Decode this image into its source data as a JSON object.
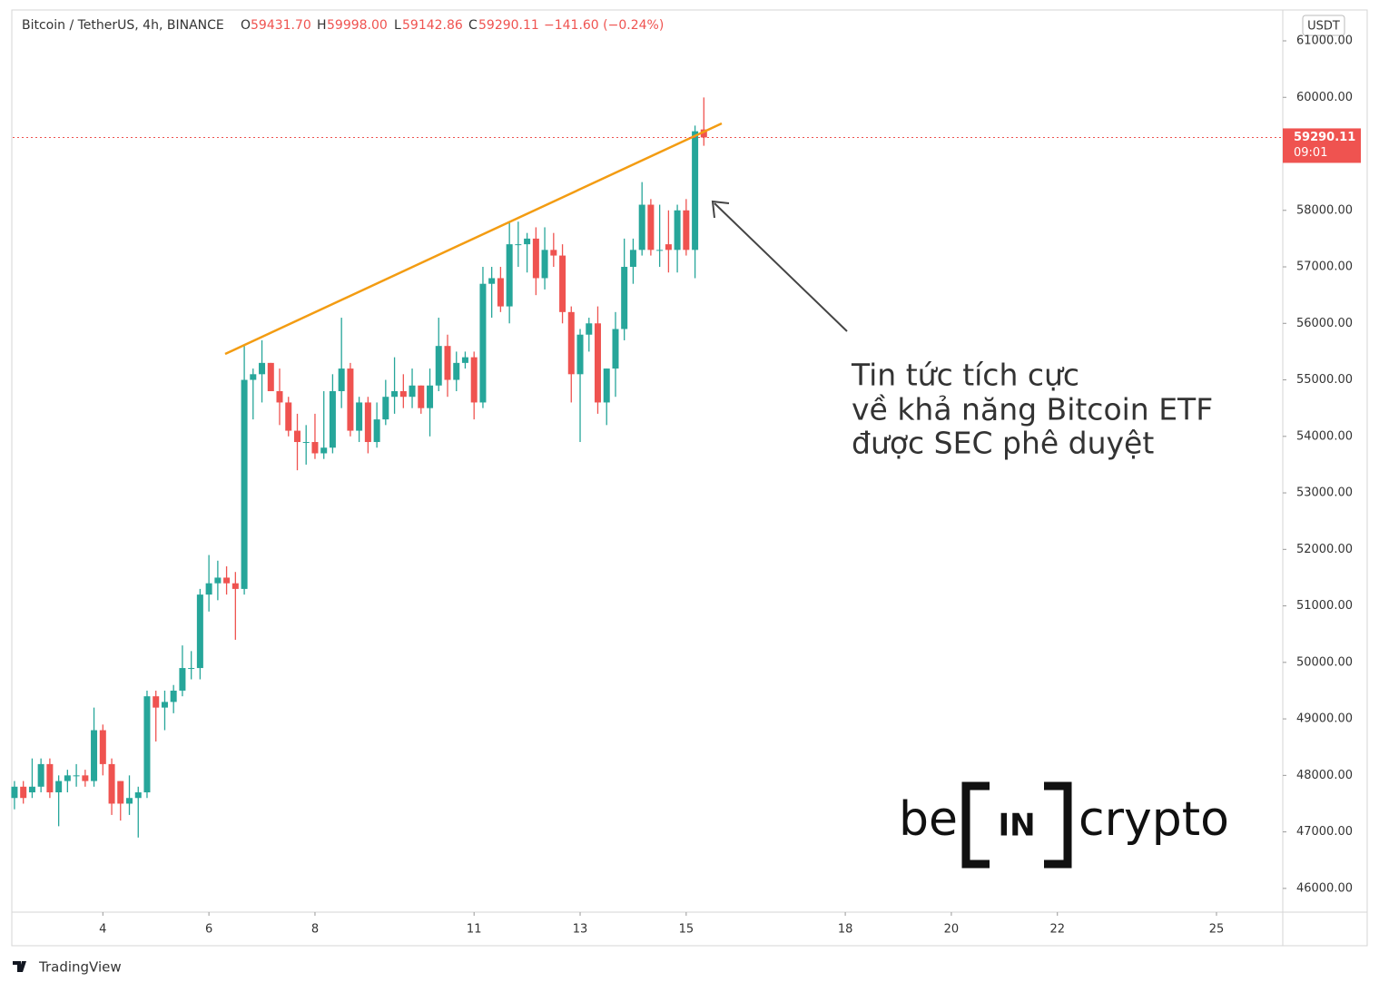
{
  "header": {
    "symbol": "Bitcoin / TetherUS, 4h, BINANCE",
    "o_label": "O",
    "o_value": "59431.70",
    "h_label": "H",
    "h_value": "59998.00",
    "l_label": "L",
    "l_value": "59142.86",
    "c_label": "C",
    "c_value": "59290.11",
    "change": "−141.60 (−0.24%)",
    "currency": "USDT",
    "countdown": "09:01"
  },
  "annotation": {
    "lines": [
      "Tin tức tích cực",
      "về khả năng Bitcoin ETF",
      "được SEC phê duyệt"
    ]
  },
  "logo": {
    "left": "be",
    "middle": "IN",
    "right": "crypto"
  },
  "footer": {
    "brand": "TradingView"
  },
  "chart_data": {
    "type": "candlestick",
    "up_color": "#26a69a",
    "down_color": "#ef5350",
    "x": [
      2.333,
      2.5,
      2.667,
      2.833,
      3,
      3.167,
      3.333,
      3.5,
      3.667,
      3.833,
      4,
      4.167,
      4.333,
      4.5,
      4.667,
      4.833,
      5,
      5.167,
      5.333,
      5.5,
      5.667,
      5.833,
      6,
      6.167,
      6.333,
      6.5,
      6.667,
      6.833,
      7,
      7.167,
      7.333,
      7.5,
      7.667,
      7.833,
      8,
      8.167,
      8.333,
      8.5,
      8.667,
      8.833,
      9,
      9.167,
      9.333,
      9.5,
      9.667,
      9.833,
      10,
      10.167,
      10.333,
      10.5,
      10.667,
      10.833,
      11,
      11.167,
      11.333,
      11.5,
      11.667,
      11.833,
      12,
      12.167,
      12.333,
      12.5,
      12.667,
      12.833,
      13,
      13.167,
      13.333,
      13.5,
      13.667,
      13.833,
      14,
      14.167,
      14.333,
      14.5,
      14.667,
      14.833,
      15,
      15.167,
      15.333
    ],
    "open": [
      47600,
      47800,
      47700,
      47800,
      48200,
      47700,
      47900,
      48000,
      48000,
      47900,
      48800,
      48200,
      47900,
      47500,
      47600,
      47700,
      49400,
      49200,
      49300,
      49500,
      49900,
      49900,
      51200,
      51400,
      51500,
      51400,
      51300,
      55000,
      55100,
      55300,
      54800,
      54600,
      54100,
      53900,
      53900,
      53700,
      53800,
      54800,
      55200,
      54100,
      54600,
      53900,
      54300,
      54700,
      54800,
      54700,
      54900,
      54500,
      54900,
      55600,
      55000,
      55300,
      55400,
      54600,
      56700,
      56800,
      56300,
      57400,
      57400,
      57500,
      56800,
      57300,
      57200,
      56200,
      55100,
      55800,
      56000,
      54600,
      55200,
      55900,
      57000,
      57300,
      58100,
      57300,
      57400,
      57300,
      58000,
      57300,
      59431.7
    ],
    "high": [
      47900,
      47900,
      48300,
      48300,
      48300,
      48000,
      48100,
      48200,
      48100,
      49200,
      48900,
      48300,
      47900,
      48000,
      47800,
      49500,
      49500,
      49500,
      49600,
      50300,
      50200,
      51300,
      51900,
      51800,
      51700,
      51600,
      55600,
      55200,
      55700,
      55300,
      55200,
      54700,
      54400,
      54200,
      54400,
      54800,
      55100,
      56100,
      55300,
      54700,
      54700,
      54600,
      55000,
      55400,
      55100,
      55200,
      54900,
      55200,
      56100,
      55800,
      55500,
      55500,
      55500,
      57000,
      57000,
      57000,
      57800,
      57800,
      57600,
      57700,
      57700,
      57600,
      57400,
      56300,
      55900,
      56100,
      56300,
      55200,
      56200,
      57500,
      57500,
      58500,
      58200,
      58100,
      58000,
      58100,
      58200,
      59500,
      59998
    ],
    "low": [
      47400,
      47500,
      47600,
      47700,
      47600,
      47100,
      47700,
      47800,
      47800,
      47800,
      48000,
      47300,
      47200,
      47300,
      46900,
      47600,
      48600,
      48800,
      49100,
      49400,
      49700,
      49700,
      50900,
      51100,
      51200,
      50400,
      51200,
      54300,
      54600,
      54800,
      54200,
      54000,
      53400,
      53500,
      53600,
      53600,
      53700,
      54500,
      54000,
      53900,
      53700,
      53800,
      54200,
      54400,
      54500,
      54500,
      54400,
      54000,
      54800,
      54700,
      54800,
      55200,
      54300,
      54500,
      56100,
      56200,
      56000,
      57000,
      56900,
      56500,
      56600,
      57000,
      56000,
      54600,
      53900,
      55500,
      54400,
      54200,
      54700,
      55700,
      56700,
      57200,
      57200,
      57000,
      56900,
      56900,
      57200,
      56800,
      59142.86
    ],
    "close": [
      47800,
      47600,
      47800,
      48200,
      47700,
      47900,
      48000,
      48000,
      47900,
      48800,
      48200,
      47500,
      47500,
      47600,
      47700,
      49400,
      49200,
      49300,
      49500,
      49900,
      49900,
      51200,
      51400,
      51500,
      51400,
      51300,
      55000,
      55100,
      55300,
      54800,
      54600,
      54100,
      53900,
      53900,
      53700,
      53800,
      54800,
      55200,
      54100,
      54600,
      53900,
      54300,
      54700,
      54800,
      54700,
      54900,
      54500,
      54900,
      55600,
      55000,
      55300,
      55400,
      54600,
      56700,
      56800,
      56300,
      57400,
      57400,
      57500,
      56800,
      57300,
      57200,
      56200,
      55100,
      55800,
      56000,
      54600,
      55200,
      55900,
      57000,
      57300,
      58100,
      57300,
      57300,
      57300,
      58000,
      57300,
      59400,
      59290.11
    ],
    "xlim": [
      2.3,
      26.25
    ],
    "xticks": [
      4,
      6,
      8,
      11,
      13,
      15,
      18,
      20,
      22,
      25
    ],
    "ylim": [
      45580,
      61530
    ],
    "yticks": [
      {
        "value": 46000,
        "label": "46000.00"
      },
      {
        "value": 47000,
        "label": "47000.00"
      },
      {
        "value": 48000,
        "label": "48000.00"
      },
      {
        "value": 49000,
        "label": "49000.00"
      },
      {
        "value": 50000,
        "label": "50000.00"
      },
      {
        "value": 51000,
        "label": "51000.00"
      },
      {
        "value": 52000,
        "label": "52000.00"
      },
      {
        "value": 53000,
        "label": "53000.00"
      },
      {
        "value": 54000,
        "label": "54000.00"
      },
      {
        "value": 55000,
        "label": "55000.00"
      },
      {
        "value": 56000,
        "label": "56000.00"
      },
      {
        "value": 57000,
        "label": "57000.00"
      },
      {
        "value": 58000,
        "label": "58000.00"
      },
      {
        "value": 59000,
        "label": "59000.00"
      },
      {
        "value": 60000,
        "label": "60000.00"
      },
      {
        "value": 61000,
        "label": "61000.00"
      }
    ],
    "price_line_color": "#ef5350"
  }
}
